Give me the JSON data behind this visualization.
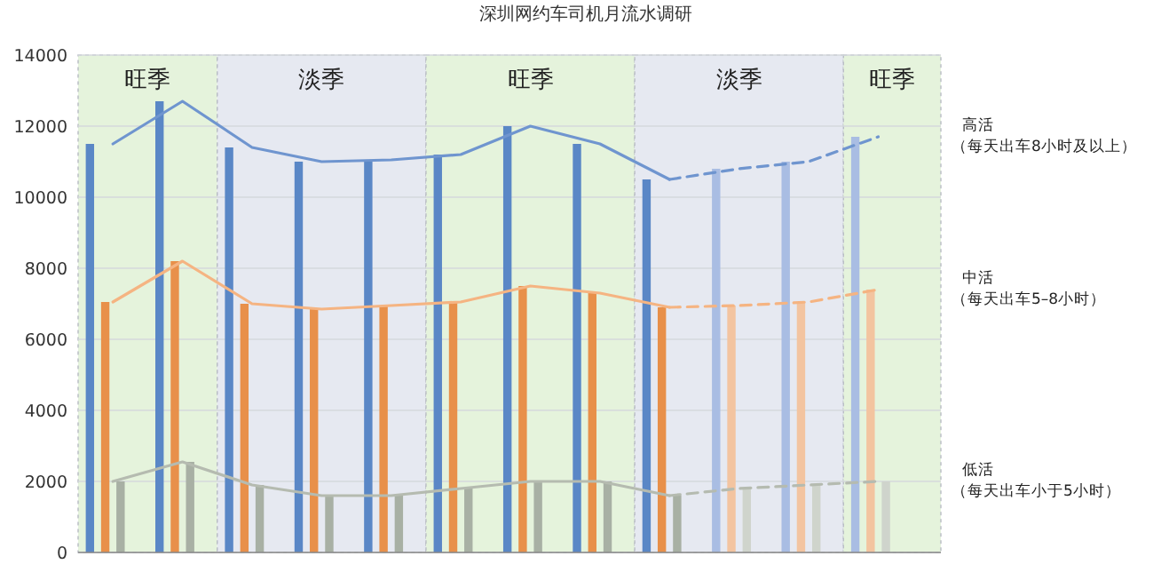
{
  "chart_data": {
    "type": "bar",
    "title": "深圳网约车司机月流水调研",
    "categories": [
      null,
      null,
      null,
      null,
      null,
      null,
      null,
      null,
      null,
      null,
      null,
      null
    ],
    "ylim": [
      0,
      14000
    ],
    "yticks": [
      0,
      2000,
      4000,
      6000,
      8000,
      10000,
      12000,
      14000
    ],
    "grid": "y",
    "series": [
      {
        "color": "#5a87c6",
        "values": [
          11500,
          12700,
          11400,
          11000,
          11050,
          11200,
          12000,
          11500,
          10500,
          null,
          null,
          null
        ]
      },
      {
        "color": "#e8904a",
        "values": [
          7050,
          8200,
          7000,
          6850,
          6950,
          7050,
          7500,
          7300,
          6900,
          null,
          null,
          null
        ]
      },
      {
        "color": "#a8b0a4",
        "values": [
          2000,
          2550,
          1900,
          1600,
          1600,
          1800,
          2000,
          2000,
          1600,
          null,
          null,
          null
        ]
      },
      {
        "color": "#a9bde3",
        "values": [
          null,
          null,
          null,
          null,
          null,
          null,
          null,
          null,
          null,
          10800,
          11000,
          11700
        ]
      },
      {
        "color": "#f3c4a0",
        "values": [
          null,
          null,
          null,
          null,
          null,
          null,
          null,
          null,
          null,
          6950,
          7050,
          7400
        ]
      },
      {
        "color": "#cfd4cc",
        "values": [
          null,
          null,
          null,
          null,
          null,
          null,
          null,
          null,
          null,
          1800,
          1900,
          2000
        ]
      },
      {
        "type": "line",
        "line_style": "solid",
        "color": "#6f95cf",
        "values": [
          11500,
          12700,
          11400,
          11000,
          11050,
          11200,
          12000,
          11500,
          10500,
          null,
          null,
          null
        ]
      },
      {
        "type": "line",
        "line_style": "dashed",
        "name": "高活（每天出车8小时及以上）",
        "color": "#6f95cf",
        "values": [
          null,
          null,
          null,
          null,
          null,
          null,
          null,
          null,
          10500,
          10800,
          11000,
          11700
        ]
      },
      {
        "type": "line",
        "line_style": "solid",
        "color": "#f5b482",
        "values": [
          7050,
          8200,
          7000,
          6850,
          6950,
          7050,
          7500,
          7300,
          6900,
          null,
          null,
          null
        ]
      },
      {
        "type": "line",
        "line_style": "dashed",
        "name": "中活（每天出车5–8小时）",
        "color": "#f5b482",
        "values": [
          null,
          null,
          null,
          null,
          null,
          null,
          null,
          null,
          6900,
          6950,
          7050,
          7400
        ]
      },
      {
        "type": "line",
        "line_style": "solid",
        "color": "#b5bbb0",
        "values": [
          2000,
          2550,
          1900,
          1600,
          1600,
          1800,
          2000,
          2000,
          1600,
          null,
          null,
          null
        ]
      },
      {
        "type": "line",
        "line_style": "dashed",
        "name": "低活（每天出车小于5小时）",
        "color": "#b5bbb0",
        "values": [
          null,
          null,
          null,
          null,
          null,
          null,
          null,
          null,
          1600,
          1800,
          1900,
          2000
        ]
      }
    ],
    "annotations": [
      "旺季",
      "淡季",
      "旺季",
      "淡季",
      "旺季"
    ]
  }
}
